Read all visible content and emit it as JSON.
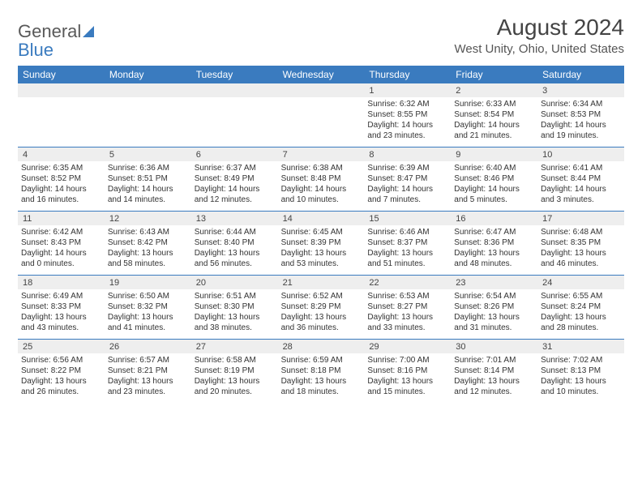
{
  "logo": {
    "part1": "General",
    "part2": "Blue"
  },
  "title": "August 2024",
  "subtitle": "West Unity, Ohio, United States",
  "colors": {
    "header_bg": "#3a7bbf",
    "header_text": "#ffffff",
    "daynum_bg": "#eeeeee",
    "divider": "#3a7bbf",
    "body_text": "#333333",
    "logo_gray": "#595959",
    "logo_blue": "#3a7bbf",
    "page_bg": "#ffffff"
  },
  "typography": {
    "title_fontsize": 28,
    "subtitle_fontsize": 15,
    "header_fontsize": 12,
    "cell_fontsize": 10
  },
  "layout": {
    "columns": 7,
    "rows": 5
  },
  "day_labels": [
    "Sunday",
    "Monday",
    "Tuesday",
    "Wednesday",
    "Thursday",
    "Friday",
    "Saturday"
  ],
  "weeks": [
    [
      {
        "n": "",
        "sr": "",
        "ss": "",
        "dl": ""
      },
      {
        "n": "",
        "sr": "",
        "ss": "",
        "dl": ""
      },
      {
        "n": "",
        "sr": "",
        "ss": "",
        "dl": ""
      },
      {
        "n": "",
        "sr": "",
        "ss": "",
        "dl": ""
      },
      {
        "n": "1",
        "sr": "Sunrise: 6:32 AM",
        "ss": "Sunset: 8:55 PM",
        "dl": "Daylight: 14 hours and 23 minutes."
      },
      {
        "n": "2",
        "sr": "Sunrise: 6:33 AM",
        "ss": "Sunset: 8:54 PM",
        "dl": "Daylight: 14 hours and 21 minutes."
      },
      {
        "n": "3",
        "sr": "Sunrise: 6:34 AM",
        "ss": "Sunset: 8:53 PM",
        "dl": "Daylight: 14 hours and 19 minutes."
      }
    ],
    [
      {
        "n": "4",
        "sr": "Sunrise: 6:35 AM",
        "ss": "Sunset: 8:52 PM",
        "dl": "Daylight: 14 hours and 16 minutes."
      },
      {
        "n": "5",
        "sr": "Sunrise: 6:36 AM",
        "ss": "Sunset: 8:51 PM",
        "dl": "Daylight: 14 hours and 14 minutes."
      },
      {
        "n": "6",
        "sr": "Sunrise: 6:37 AM",
        "ss": "Sunset: 8:49 PM",
        "dl": "Daylight: 14 hours and 12 minutes."
      },
      {
        "n": "7",
        "sr": "Sunrise: 6:38 AM",
        "ss": "Sunset: 8:48 PM",
        "dl": "Daylight: 14 hours and 10 minutes."
      },
      {
        "n": "8",
        "sr": "Sunrise: 6:39 AM",
        "ss": "Sunset: 8:47 PM",
        "dl": "Daylight: 14 hours and 7 minutes."
      },
      {
        "n": "9",
        "sr": "Sunrise: 6:40 AM",
        "ss": "Sunset: 8:46 PM",
        "dl": "Daylight: 14 hours and 5 minutes."
      },
      {
        "n": "10",
        "sr": "Sunrise: 6:41 AM",
        "ss": "Sunset: 8:44 PM",
        "dl": "Daylight: 14 hours and 3 minutes."
      }
    ],
    [
      {
        "n": "11",
        "sr": "Sunrise: 6:42 AM",
        "ss": "Sunset: 8:43 PM",
        "dl": "Daylight: 14 hours and 0 minutes."
      },
      {
        "n": "12",
        "sr": "Sunrise: 6:43 AM",
        "ss": "Sunset: 8:42 PM",
        "dl": "Daylight: 13 hours and 58 minutes."
      },
      {
        "n": "13",
        "sr": "Sunrise: 6:44 AM",
        "ss": "Sunset: 8:40 PM",
        "dl": "Daylight: 13 hours and 56 minutes."
      },
      {
        "n": "14",
        "sr": "Sunrise: 6:45 AM",
        "ss": "Sunset: 8:39 PM",
        "dl": "Daylight: 13 hours and 53 minutes."
      },
      {
        "n": "15",
        "sr": "Sunrise: 6:46 AM",
        "ss": "Sunset: 8:37 PM",
        "dl": "Daylight: 13 hours and 51 minutes."
      },
      {
        "n": "16",
        "sr": "Sunrise: 6:47 AM",
        "ss": "Sunset: 8:36 PM",
        "dl": "Daylight: 13 hours and 48 minutes."
      },
      {
        "n": "17",
        "sr": "Sunrise: 6:48 AM",
        "ss": "Sunset: 8:35 PM",
        "dl": "Daylight: 13 hours and 46 minutes."
      }
    ],
    [
      {
        "n": "18",
        "sr": "Sunrise: 6:49 AM",
        "ss": "Sunset: 8:33 PM",
        "dl": "Daylight: 13 hours and 43 minutes."
      },
      {
        "n": "19",
        "sr": "Sunrise: 6:50 AM",
        "ss": "Sunset: 8:32 PM",
        "dl": "Daylight: 13 hours and 41 minutes."
      },
      {
        "n": "20",
        "sr": "Sunrise: 6:51 AM",
        "ss": "Sunset: 8:30 PM",
        "dl": "Daylight: 13 hours and 38 minutes."
      },
      {
        "n": "21",
        "sr": "Sunrise: 6:52 AM",
        "ss": "Sunset: 8:29 PM",
        "dl": "Daylight: 13 hours and 36 minutes."
      },
      {
        "n": "22",
        "sr": "Sunrise: 6:53 AM",
        "ss": "Sunset: 8:27 PM",
        "dl": "Daylight: 13 hours and 33 minutes."
      },
      {
        "n": "23",
        "sr": "Sunrise: 6:54 AM",
        "ss": "Sunset: 8:26 PM",
        "dl": "Daylight: 13 hours and 31 minutes."
      },
      {
        "n": "24",
        "sr": "Sunrise: 6:55 AM",
        "ss": "Sunset: 8:24 PM",
        "dl": "Daylight: 13 hours and 28 minutes."
      }
    ],
    [
      {
        "n": "25",
        "sr": "Sunrise: 6:56 AM",
        "ss": "Sunset: 8:22 PM",
        "dl": "Daylight: 13 hours and 26 minutes."
      },
      {
        "n": "26",
        "sr": "Sunrise: 6:57 AM",
        "ss": "Sunset: 8:21 PM",
        "dl": "Daylight: 13 hours and 23 minutes."
      },
      {
        "n": "27",
        "sr": "Sunrise: 6:58 AM",
        "ss": "Sunset: 8:19 PM",
        "dl": "Daylight: 13 hours and 20 minutes."
      },
      {
        "n": "28",
        "sr": "Sunrise: 6:59 AM",
        "ss": "Sunset: 8:18 PM",
        "dl": "Daylight: 13 hours and 18 minutes."
      },
      {
        "n": "29",
        "sr": "Sunrise: 7:00 AM",
        "ss": "Sunset: 8:16 PM",
        "dl": "Daylight: 13 hours and 15 minutes."
      },
      {
        "n": "30",
        "sr": "Sunrise: 7:01 AM",
        "ss": "Sunset: 8:14 PM",
        "dl": "Daylight: 13 hours and 12 minutes."
      },
      {
        "n": "31",
        "sr": "Sunrise: 7:02 AM",
        "ss": "Sunset: 8:13 PM",
        "dl": "Daylight: 13 hours and 10 minutes."
      }
    ]
  ]
}
